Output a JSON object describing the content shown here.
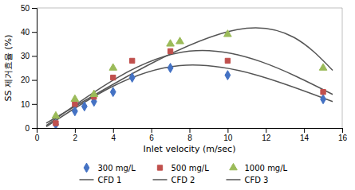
{
  "chart_data": {
    "type": "scatter",
    "xlabel": "Inlet velocity (m/sec)",
    "ylabel": "SS 제거효율 (%)",
    "series": [
      {
        "name": "300 mg/L",
        "type": "scatter",
        "color": "#4472C4",
        "marker": "diamond",
        "x": [
          1,
          2,
          2.5,
          3,
          4,
          5,
          7,
          10,
          15
        ],
        "values": [
          1.5,
          7,
          9,
          11,
          15,
          21,
          25,
          22,
          12
        ]
      },
      {
        "name": "500 mg/L",
        "type": "scatter",
        "color": "#C0504D",
        "marker": "square",
        "x": [
          1,
          2,
          3,
          4,
          5,
          7,
          10,
          15
        ],
        "values": [
          2,
          10,
          13,
          21,
          28,
          32,
          28,
          15
        ]
      },
      {
        "name": "1000 mg/L",
        "type": "scatter",
        "color": "#9BBB59",
        "marker": "triangle",
        "x": [
          1,
          2,
          3,
          4,
          7,
          7.5,
          10,
          15
        ],
        "values": [
          5,
          12,
          14,
          25,
          35,
          36,
          39,
          25
        ]
      },
      {
        "name": "CFD 1",
        "type": "line",
        "color": "#555555",
        "line_style": "solid",
        "x": [
          0.5,
          7.5,
          15.5
        ],
        "values": [
          0.5,
          26,
          11
        ]
      },
      {
        "name": "CFD 2",
        "type": "line",
        "color": "#555555",
        "line_style": "solid",
        "x": [
          0.5,
          8.0,
          15.5
        ],
        "values": [
          1.0,
          32,
          14
        ]
      },
      {
        "name": "CFD 3",
        "type": "line",
        "color": "#555555",
        "line_style": "solid",
        "x": [
          0.5,
          10.5,
          15.5
        ],
        "values": [
          2.0,
          41,
          24
        ]
      }
    ],
    "xlim": [
      0,
      16
    ],
    "ylim": [
      0,
      50
    ],
    "xticks": [
      0,
      2,
      4,
      6,
      8,
      10,
      12,
      14,
      16
    ],
    "yticks": [
      0,
      10,
      20,
      30,
      40,
      50
    ],
    "grid": false,
    "legend": "bottom"
  }
}
